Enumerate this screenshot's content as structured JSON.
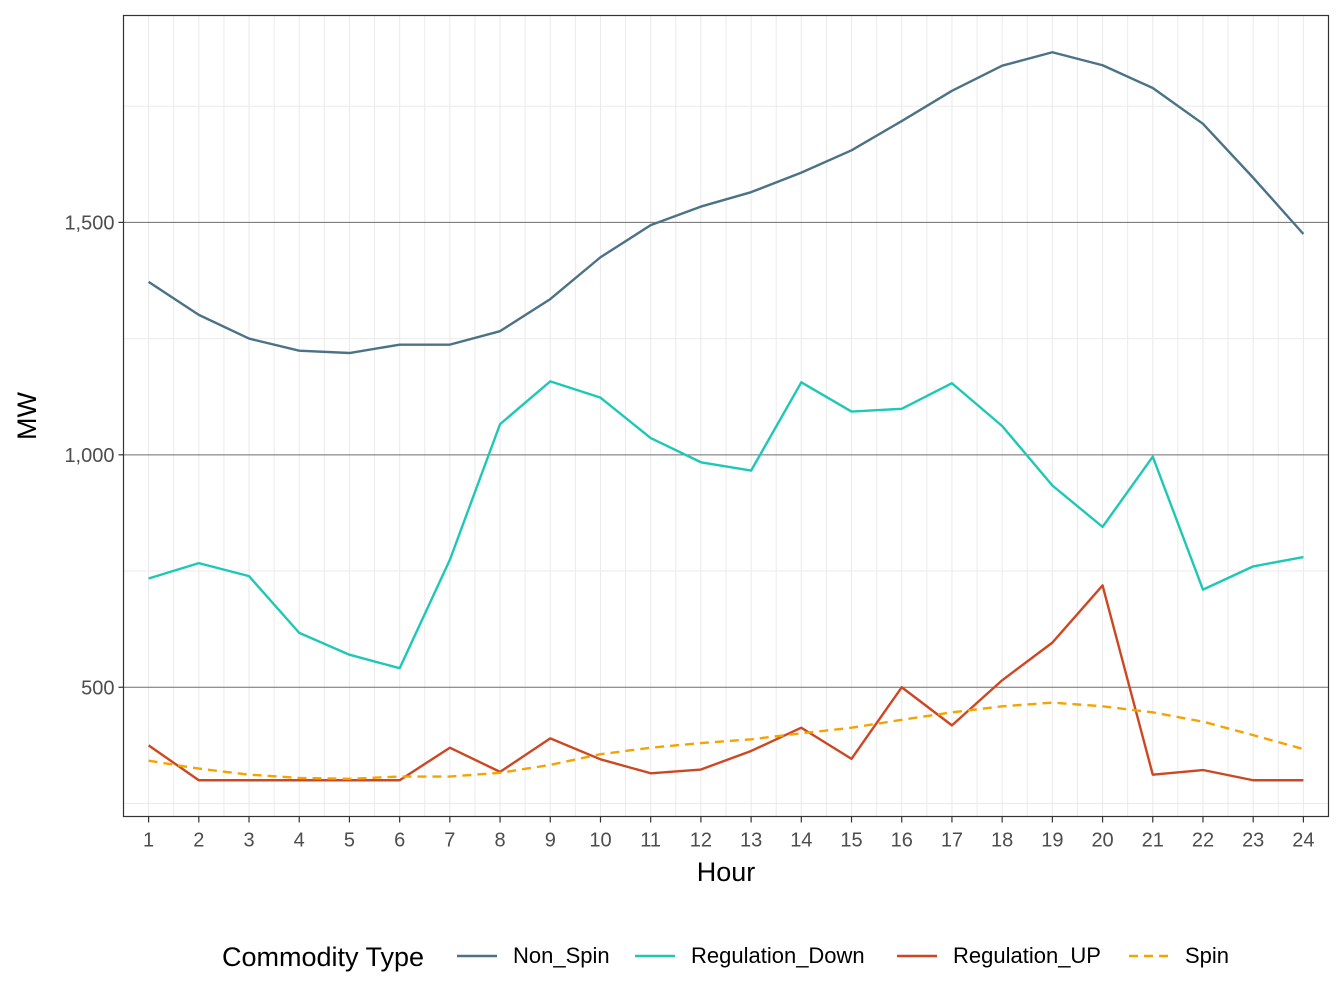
{
  "chart_data": {
    "type": "line",
    "xlabel": "Hour",
    "ylabel": "MW",
    "x": [
      1,
      2,
      3,
      4,
      5,
      6,
      7,
      8,
      9,
      10,
      11,
      12,
      13,
      14,
      15,
      16,
      17,
      18,
      19,
      20,
      21,
      22,
      23,
      24
    ],
    "x_tick_labels": [
      "1",
      "2",
      "3",
      "4",
      "5",
      "6",
      "7",
      "8",
      "9",
      "10",
      "11",
      "12",
      "13",
      "14",
      "15",
      "16",
      "17",
      "18",
      "19",
      "20",
      "21",
      "22",
      "23",
      "24"
    ],
    "xlim": [
      0.5,
      24.5
    ],
    "ylim": [
      222,
      1945
    ],
    "y_ticks": [
      500,
      1000,
      1500
    ],
    "y_tick_labels": [
      "500",
      "1,000",
      "1,500"
    ],
    "grid": true,
    "legend": {
      "title": "Commodity Type",
      "position": "bottom"
    },
    "series": [
      {
        "name": "Non_Spin",
        "color": "#4b7285",
        "dash": "solid",
        "values": [
          1372,
          1301,
          1250,
          1224,
          1219,
          1237,
          1237,
          1266,
          1335,
          1425,
          1494,
          1534,
          1565,
          1607,
          1655,
          1718,
          1783,
          1837,
          1866,
          1838,
          1789,
          1712,
          1596,
          1475
        ]
      },
      {
        "name": "Regulation_Down",
        "color": "#1ec8b4",
        "dash": "solid",
        "values": [
          734,
          767,
          739,
          617,
          570,
          541,
          774,
          1066,
          1158,
          1123,
          1036,
          984,
          966,
          1156,
          1093,
          1099,
          1154,
          1062,
          934,
          845,
          996,
          710,
          760,
          780
        ]
      },
      {
        "name": "Regulation_UP",
        "color": "#cc4722",
        "dash": "solid",
        "values": [
          375,
          300,
          300,
          300,
          300,
          300,
          370,
          318,
          390,
          345,
          315,
          323,
          363,
          413,
          346,
          500,
          418,
          515,
          596,
          719,
          312,
          322,
          300,
          300
        ]
      },
      {
        "name": "Spin",
        "color": "#f4a300",
        "dash": "dashed",
        "values": [
          342,
          325,
          312,
          305,
          303,
          308,
          308,
          316,
          333,
          356,
          370,
          380,
          388,
          401,
          413,
          430,
          446,
          459,
          467,
          459,
          446,
          426,
          397,
          367
        ]
      }
    ]
  }
}
